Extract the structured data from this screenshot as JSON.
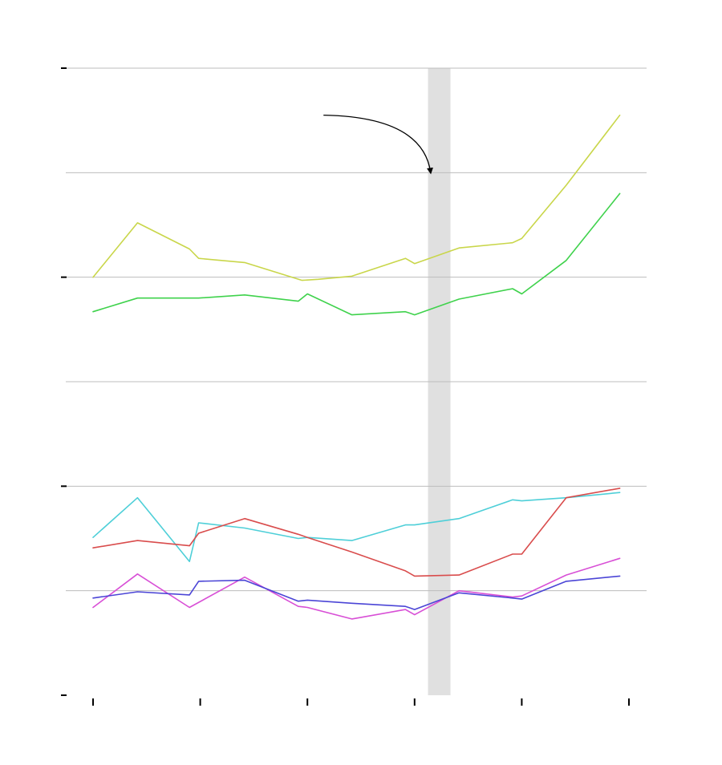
{
  "chart_data": {
    "type": "line",
    "title": "",
    "xlabel": "",
    "ylabel": "",
    "xlim": [
      0,
      10
    ],
    "ylim": [
      0,
      6
    ],
    "grid": true,
    "y_ticks": [
      0,
      1,
      2,
      3,
      4,
      5,
      6
    ],
    "major_y_ticks": [
      0,
      2,
      4,
      6
    ],
    "x_ticks": [
      0,
      2,
      4,
      6,
      8,
      10
    ],
    "highlight_band": {
      "from": 6.25,
      "to": 6.67
    },
    "annotation_arrow": {
      "from": [
        4.3,
        5.55
      ],
      "to": [
        6.3,
        5.0
      ]
    },
    "series": [
      {
        "color": "#c9d64a",
        "points": [
          [
            0,
            4.0
          ],
          [
            0.83,
            4.52
          ],
          [
            1.8,
            4.27
          ],
          [
            1.97,
            4.18
          ],
          [
            2.83,
            4.14
          ],
          [
            3.9,
            3.97
          ],
          [
            4.2,
            3.98
          ],
          [
            4.83,
            4.01
          ],
          [
            5.83,
            4.18
          ],
          [
            6.0,
            4.13
          ],
          [
            6.83,
            4.28
          ],
          [
            7.83,
            4.33
          ],
          [
            8.0,
            4.37
          ],
          [
            8.83,
            4.88
          ],
          [
            9.83,
            5.55
          ]
        ]
      },
      {
        "color": "#3fd24c",
        "points": [
          [
            0,
            3.67
          ],
          [
            0.83,
            3.8
          ],
          [
            1.97,
            3.8
          ],
          [
            2.83,
            3.83
          ],
          [
            3.83,
            3.77
          ],
          [
            4.0,
            3.84
          ],
          [
            4.83,
            3.64
          ],
          [
            5.83,
            3.67
          ],
          [
            6.0,
            3.64
          ],
          [
            6.83,
            3.79
          ],
          [
            7.83,
            3.89
          ],
          [
            8.0,
            3.84
          ],
          [
            8.83,
            4.16
          ],
          [
            9.83,
            4.8
          ]
        ]
      },
      {
        "color": "#4ecfd8",
        "points": [
          [
            0,
            1.51
          ],
          [
            0.83,
            1.89
          ],
          [
            1.8,
            1.28
          ],
          [
            1.97,
            1.65
          ],
          [
            2.83,
            1.6
          ],
          [
            3.83,
            1.5
          ],
          [
            4.0,
            1.51
          ],
          [
            4.83,
            1.48
          ],
          [
            5.83,
            1.63
          ],
          [
            6.0,
            1.63
          ],
          [
            6.83,
            1.69
          ],
          [
            7.83,
            1.87
          ],
          [
            8.0,
            1.86
          ],
          [
            8.83,
            1.89
          ],
          [
            9.83,
            1.94
          ]
        ]
      },
      {
        "color": "#d94c4c",
        "points": [
          [
            0,
            1.41
          ],
          [
            0.83,
            1.48
          ],
          [
            1.8,
            1.43
          ],
          [
            1.97,
            1.55
          ],
          [
            2.83,
            1.69
          ],
          [
            3.83,
            1.54
          ],
          [
            4.0,
            1.51
          ],
          [
            4.83,
            1.37
          ],
          [
            5.83,
            1.19
          ],
          [
            6.0,
            1.14
          ],
          [
            6.83,
            1.15
          ],
          [
            7.83,
            1.35
          ],
          [
            8.0,
            1.35
          ],
          [
            8.83,
            1.89
          ],
          [
            9.83,
            1.98
          ]
        ]
      },
      {
        "color": "#d84fd6",
        "points": [
          [
            0,
            0.84
          ],
          [
            0.83,
            1.16
          ],
          [
            1.8,
            0.84
          ],
          [
            2.83,
            1.13
          ],
          [
            3.83,
            0.85
          ],
          [
            4.0,
            0.84
          ],
          [
            4.83,
            0.73
          ],
          [
            5.83,
            0.82
          ],
          [
            6.0,
            0.77
          ],
          [
            6.83,
            1.0
          ],
          [
            7.83,
            0.94
          ],
          [
            8.0,
            0.95
          ],
          [
            8.83,
            1.15
          ],
          [
            9.83,
            1.31
          ]
        ]
      },
      {
        "color": "#4b45d6",
        "points": [
          [
            0,
            0.93
          ],
          [
            0.83,
            0.99
          ],
          [
            1.8,
            0.96
          ],
          [
            1.97,
            1.09
          ],
          [
            2.83,
            1.1
          ],
          [
            3.83,
            0.9
          ],
          [
            4.0,
            0.91
          ],
          [
            4.83,
            0.88
          ],
          [
            5.83,
            0.85
          ],
          [
            6.0,
            0.82
          ],
          [
            6.83,
            0.98
          ],
          [
            7.83,
            0.93
          ],
          [
            8.0,
            0.92
          ],
          [
            8.83,
            1.09
          ],
          [
            9.83,
            1.14
          ]
        ]
      }
    ]
  }
}
